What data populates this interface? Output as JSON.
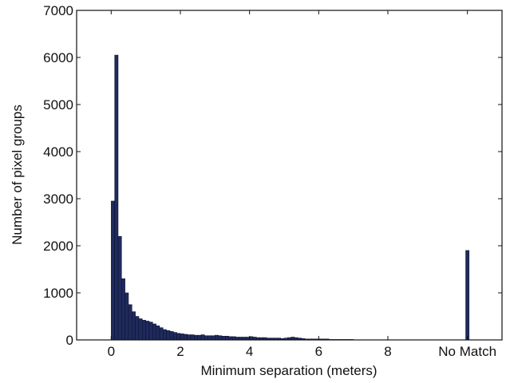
{
  "chart_data": {
    "type": "bar",
    "title": "",
    "xlabel": "Minimum separation (meters)",
    "ylabel": "Number of pixel groups",
    "ylim": [
      0,
      7000
    ],
    "xlim": [
      -1,
      11.3
    ],
    "yticks": [
      0,
      1000,
      2000,
      3000,
      4000,
      5000,
      6000,
      7000
    ],
    "xticks": [
      {
        "value": 0,
        "label": "0"
      },
      {
        "value": 2,
        "label": "2"
      },
      {
        "value": 4,
        "label": "4"
      },
      {
        "value": 6,
        "label": "6"
      },
      {
        "value": 8,
        "label": "8"
      },
      {
        "value": 10.3,
        "label": "No Match"
      }
    ],
    "bin_width": 0.1,
    "grid": false,
    "legend": "none",
    "bar_color": "#1f2a5c",
    "x": [
      0.05,
      0.15,
      0.25,
      0.35,
      0.45,
      0.55,
      0.65,
      0.75,
      0.85,
      0.95,
      1.05,
      1.15,
      1.25,
      1.35,
      1.45,
      1.55,
      1.65,
      1.75,
      1.85,
      1.95,
      2.05,
      2.15,
      2.25,
      2.35,
      2.45,
      2.55,
      2.65,
      2.75,
      2.85,
      2.95,
      3.05,
      3.15,
      3.25,
      3.35,
      3.45,
      3.55,
      3.65,
      3.75,
      3.85,
      3.95,
      4.05,
      4.15,
      4.25,
      4.35,
      4.45,
      4.55,
      4.65,
      4.75,
      4.85,
      4.95,
      5.05,
      5.15,
      5.25,
      5.35,
      5.45,
      5.55,
      5.65,
      5.75,
      5.85,
      5.95,
      6.05,
      6.15,
      6.25,
      6.35,
      6.45,
      6.55,
      6.65,
      6.75,
      6.85,
      6.95,
      10.3
    ],
    "values": [
      2950,
      6050,
      2200,
      1300,
      1000,
      750,
      600,
      500,
      450,
      420,
      400,
      380,
      340,
      300,
      260,
      220,
      200,
      180,
      160,
      140,
      130,
      120,
      110,
      110,
      100,
      100,
      110,
      90,
      90,
      90,
      100,
      90,
      80,
      80,
      70,
      70,
      60,
      60,
      60,
      60,
      70,
      60,
      50,
      50,
      50,
      40,
      40,
      40,
      40,
      30,
      40,
      50,
      60,
      50,
      40,
      30,
      20,
      20,
      20,
      20,
      20,
      20,
      20,
      10,
      10,
      10,
      10,
      10,
      10,
      10,
      1900
    ]
  }
}
